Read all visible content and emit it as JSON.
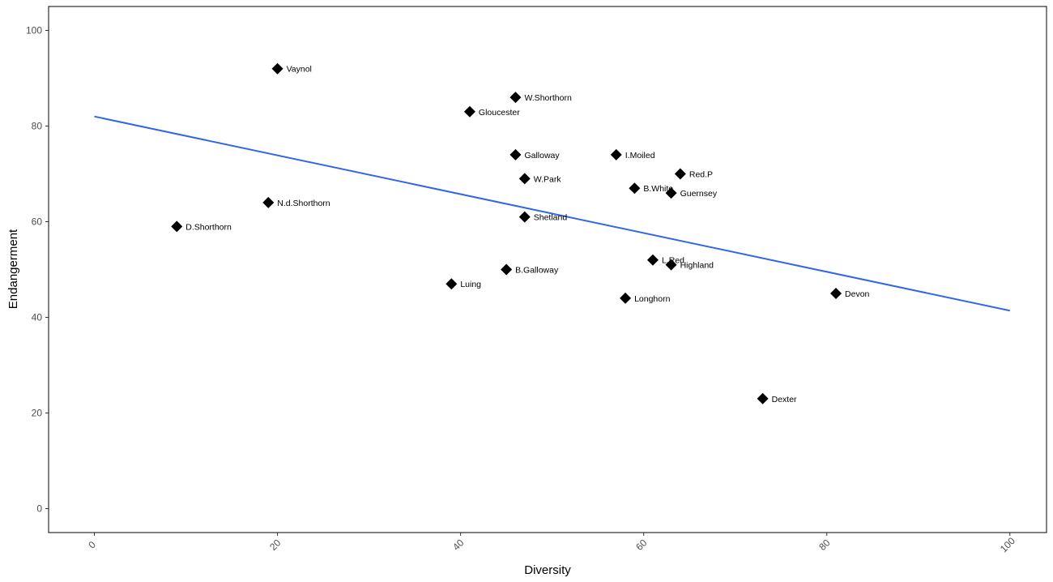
{
  "chart_data": {
    "type": "scatter",
    "title": "",
    "xlabel": "Diversity",
    "ylabel": "Endangerment",
    "xlim": [
      -5,
      104
    ],
    "ylim": [
      -5,
      105
    ],
    "x_ticks": [
      0,
      20,
      40,
      60,
      80,
      100
    ],
    "y_ticks": [
      0,
      20,
      40,
      60,
      80,
      100
    ],
    "grid": false,
    "points": [
      {
        "label": "Vaynol",
        "x": 20,
        "y": 92
      },
      {
        "label": "W.Shorthorn",
        "x": 46,
        "y": 86
      },
      {
        "label": "Gloucester",
        "x": 41,
        "y": 83
      },
      {
        "label": "Galloway",
        "x": 46,
        "y": 74
      },
      {
        "label": "I.Moiled",
        "x": 57,
        "y": 74
      },
      {
        "label": "Red.P",
        "x": 64,
        "y": 70
      },
      {
        "label": "W.Park",
        "x": 47,
        "y": 69
      },
      {
        "label": "B.White",
        "x": 59,
        "y": 67
      },
      {
        "label": "Guernsey",
        "x": 63,
        "y": 66
      },
      {
        "label": "N.d.Shorthorn",
        "x": 19,
        "y": 64
      },
      {
        "label": "Shetland",
        "x": 47,
        "y": 61
      },
      {
        "label": "D.Shorthorn",
        "x": 9,
        "y": 59
      },
      {
        "label": "L.Red",
        "x": 61,
        "y": 52
      },
      {
        "label": "Highland",
        "x": 63,
        "y": 51
      },
      {
        "label": "B.Galloway",
        "x": 45,
        "y": 50
      },
      {
        "label": "Luing",
        "x": 39,
        "y": 47
      },
      {
        "label": "Devon",
        "x": 81,
        "y": 45
      },
      {
        "label": "Longhorn",
        "x": 58,
        "y": 44
      },
      {
        "label": "Dexter",
        "x": 73,
        "y": 23
      }
    ],
    "trend_line": {
      "x": [
        0,
        100
      ],
      "y": [
        82,
        41.4
      ],
      "color": "#3366e6"
    },
    "marker_color": "#000000"
  }
}
